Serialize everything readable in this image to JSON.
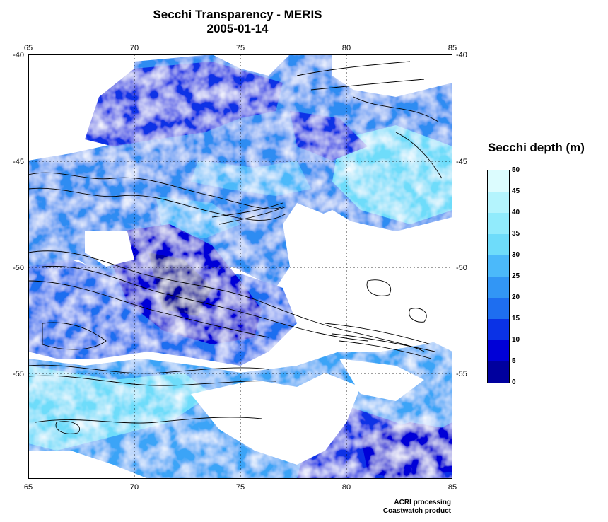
{
  "title": {
    "line1": "Secchi Transparency - MERIS",
    "line2": "2005-01-14"
  },
  "map": {
    "lon_ticks": [
      "65",
      "70",
      "75",
      "80",
      "85"
    ],
    "lat_ticks": [
      "-40",
      "-45",
      "-50",
      "-55"
    ],
    "lon_range": [
      65,
      85
    ],
    "lat_range": [
      -60,
      -40
    ],
    "grid": "dashed",
    "contours": "black bathymetric contour lines",
    "land_or_missing": "#ffffff"
  },
  "colorbar": {
    "title": "Secchi depth (m)",
    "labels": [
      "0",
      "5",
      "10",
      "15",
      "20",
      "25",
      "30",
      "35",
      "40",
      "45",
      "50"
    ],
    "colors": [
      "#00009e",
      "#0000d7",
      "#0a32e6",
      "#1e6ef0",
      "#3296f5",
      "#4bb9fa",
      "#6edcfa",
      "#91ebfc",
      "#b4f4fd",
      "#dcfcfe"
    ]
  },
  "credits": {
    "line1": "ACRI processing",
    "line2": "Coastwatch product"
  }
}
